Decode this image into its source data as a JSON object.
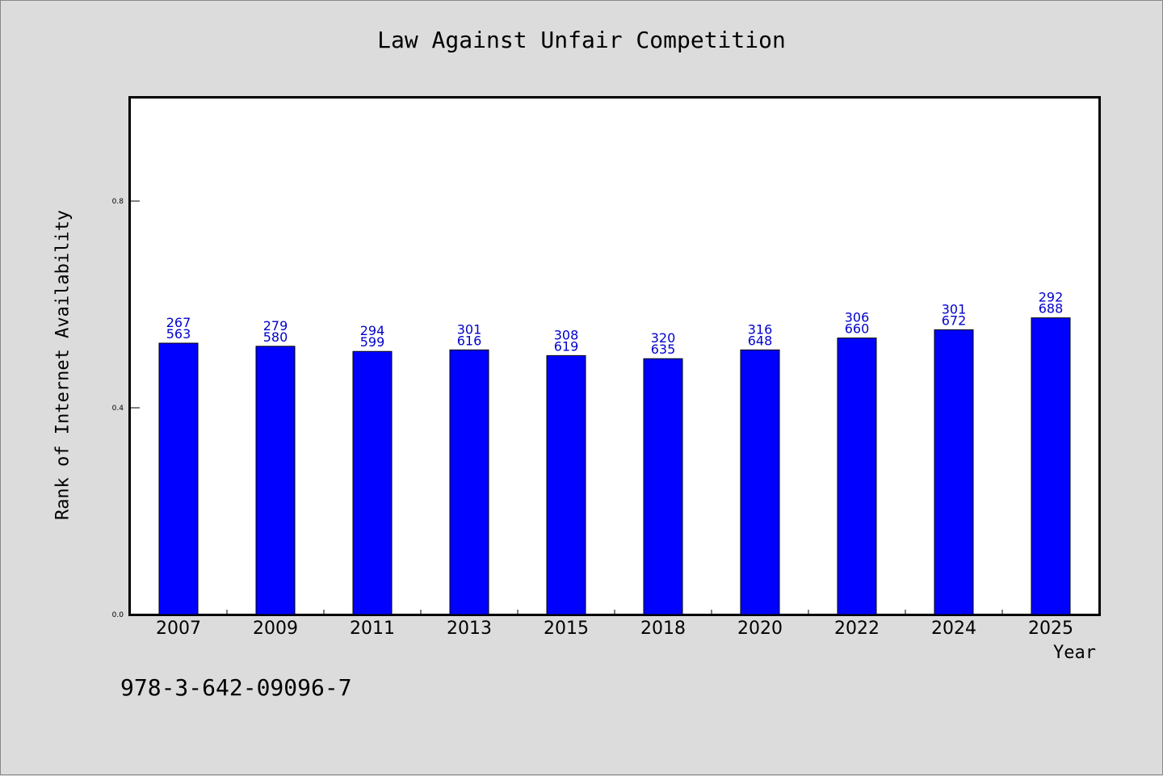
{
  "chart_data": {
    "type": "bar",
    "title": "Law Against Unfair Competition",
    "xlabel": "Year",
    "ylabel": "Rank of Internet Availability",
    "ylim": [
      0,
      1.0
    ],
    "yticks": [
      "0.0",
      "0.4",
      "0.8"
    ],
    "bar_color": "#0000ff",
    "categories": [
      "2007",
      "2009",
      "2011",
      "2013",
      "2015",
      "2018",
      "2020",
      "2022",
      "2024",
      "2025"
    ],
    "values": [
      0.525,
      0.519,
      0.509,
      0.512,
      0.501,
      0.495,
      0.512,
      0.535,
      0.551,
      0.574
    ],
    "labels_top": [
      "267",
      "279",
      "294",
      "301",
      "308",
      "320",
      "316",
      "306",
      "301",
      "292"
    ],
    "labels_bottom": [
      "563",
      "580",
      "599",
      "616",
      "619",
      "635",
      "648",
      "660",
      "672",
      "688"
    ],
    "grid": false,
    "legend": null
  },
  "footer": {
    "isbn": "978-3-642-09096-7"
  }
}
